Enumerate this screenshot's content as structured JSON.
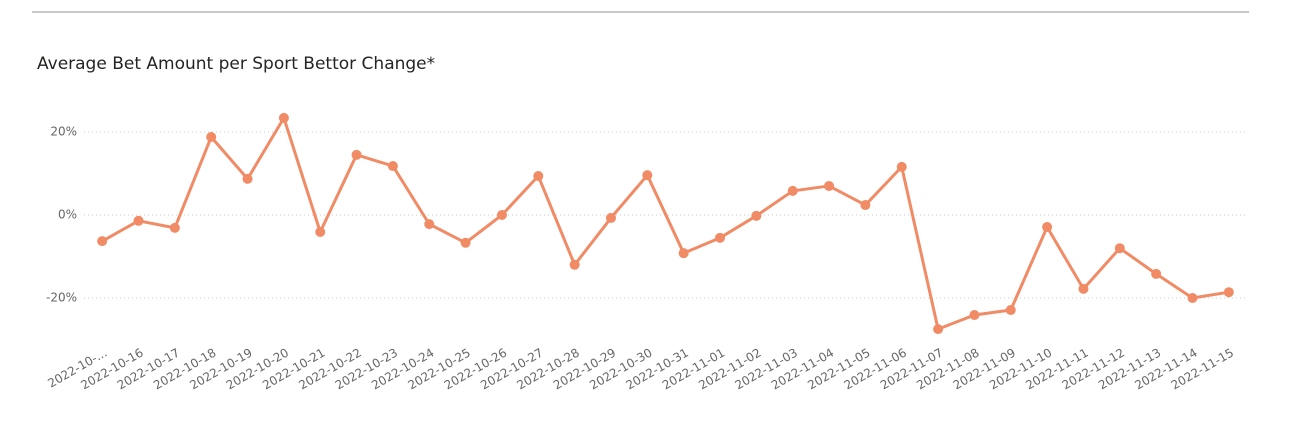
{
  "chart_data": {
    "type": "line",
    "title": "Average Bet Amount per Sport Bettor Change*",
    "categories": [
      "2022-10-...",
      "2022-10-16",
      "2022-10-17",
      "2022-10-18",
      "2022-10-19",
      "2022-10-20",
      "2022-10-21",
      "2022-10-22",
      "2022-10-23",
      "2022-10-24",
      "2022-10-25",
      "2022-10-26",
      "2022-10-27",
      "2022-10-28",
      "2022-10-29",
      "2022-10-30",
      "2022-10-31",
      "2022-11-01",
      "2022-11-02",
      "2022-11-03",
      "2022-11-04",
      "2022-11-05",
      "2022-11-06",
      "2022-11-07",
      "2022-11-08",
      "2022-11-09",
      "2022-11-10",
      "2022-11-11",
      "2022-11-12",
      "2022-11-13",
      "2022-11-14",
      "2022-11-15"
    ],
    "values": [
      -6.3,
      -1.4,
      -3.1,
      18.8,
      8.7,
      23.4,
      -4.1,
      14.5,
      11.8,
      -2.2,
      -6.7,
      0,
      9.4,
      -12,
      -0.7,
      9.6,
      -9.2,
      -5.5,
      -0.2,
      5.8,
      7.0,
      2.4,
      11.6,
      -27.5,
      -24.1,
      -22.9,
      -2.9,
      -17.8,
      -8.0,
      -14.2,
      -20.0,
      -18.6
    ],
    "color": "#f08b66",
    "ylim": [
      -30,
      25
    ],
    "yticks": [
      {
        "value": -20,
        "label": "-20%"
      },
      {
        "value": 0,
        "label": "0%"
      },
      {
        "value": 20,
        "label": "20%"
      }
    ],
    "grid": true
  }
}
